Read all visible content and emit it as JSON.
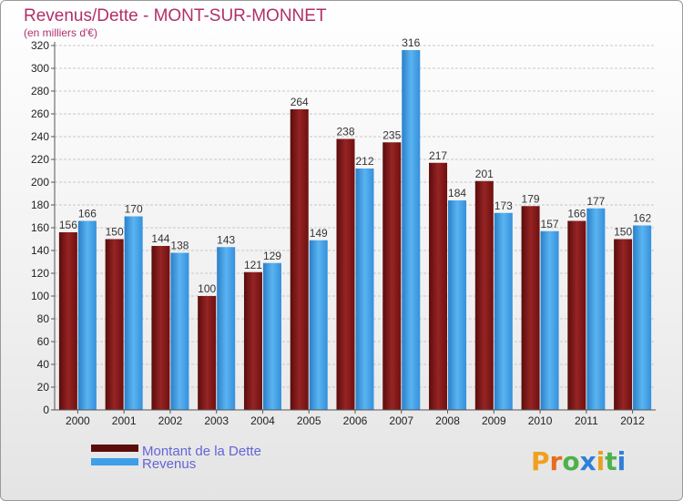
{
  "chart_data": {
    "type": "bar",
    "title": "Revenus/Dette - MONT-SUR-MONNET",
    "subtitle": "(en milliers d'€)",
    "categories": [
      "2000",
      "2001",
      "2002",
      "2003",
      "2004",
      "2005",
      "2006",
      "2007",
      "2008",
      "2009",
      "2010",
      "2011",
      "2012"
    ],
    "series": [
      {
        "name": "Montant de la Dette",
        "values": [
          156,
          150,
          144,
          100,
          121,
          264,
          238,
          235,
          217,
          201,
          179,
          166,
          150
        ],
        "color": "#8b1a1a"
      },
      {
        "name": "Revenus",
        "values": [
          166,
          170,
          138,
          143,
          129,
          149,
          212,
          316,
          184,
          173,
          157,
          177,
          162
        ],
        "color": "#3d9fe8"
      }
    ],
    "ylim": [
      0,
      320
    ],
    "ytick_step": 20,
    "grid": true,
    "legend_position": "bottom-left"
  },
  "branding": {
    "logo": "Proxiti"
  }
}
